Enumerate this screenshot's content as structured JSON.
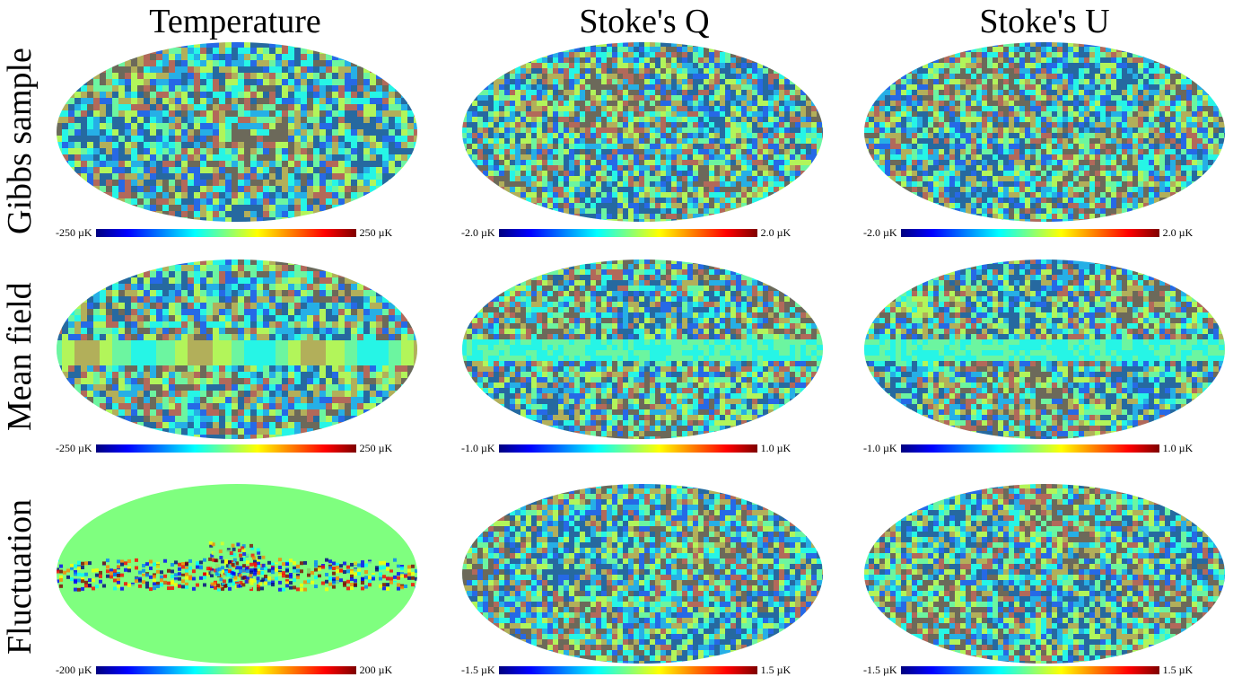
{
  "columns": [
    "Temperature",
    "Stoke's Q",
    "Stoke's U"
  ],
  "rows": [
    "Gibbs sample",
    "Mean field",
    "Fluctuation"
  ],
  "colorbars": [
    [
      {
        "min": "-250 µK",
        "max": "250 µK"
      },
      {
        "min": "-2.0 µK",
        "max": "2.0 µK"
      },
      {
        "min": "-2.0 µK",
        "max": "2.0 µK"
      }
    ],
    [
      {
        "min": "-250 µK",
        "max": "250 µK"
      },
      {
        "min": "-1.0 µK",
        "max": "1.0 µK"
      },
      {
        "min": "-1.0 µK",
        "max": "1.0 µK"
      }
    ],
    [
      {
        "min": "-200 µK",
        "max": "200 µK"
      },
      {
        "min": "-1.5 µK",
        "max": "1.5 µK"
      },
      {
        "min": "-1.5 µK",
        "max": "1.5 µK"
      }
    ]
  ],
  "colormap": [
    "#00007f",
    "#0000ff",
    "#007fff",
    "#00ffff",
    "#7fff7f",
    "#ffff00",
    "#ff7f00",
    "#ff0000",
    "#7f0000"
  ]
}
